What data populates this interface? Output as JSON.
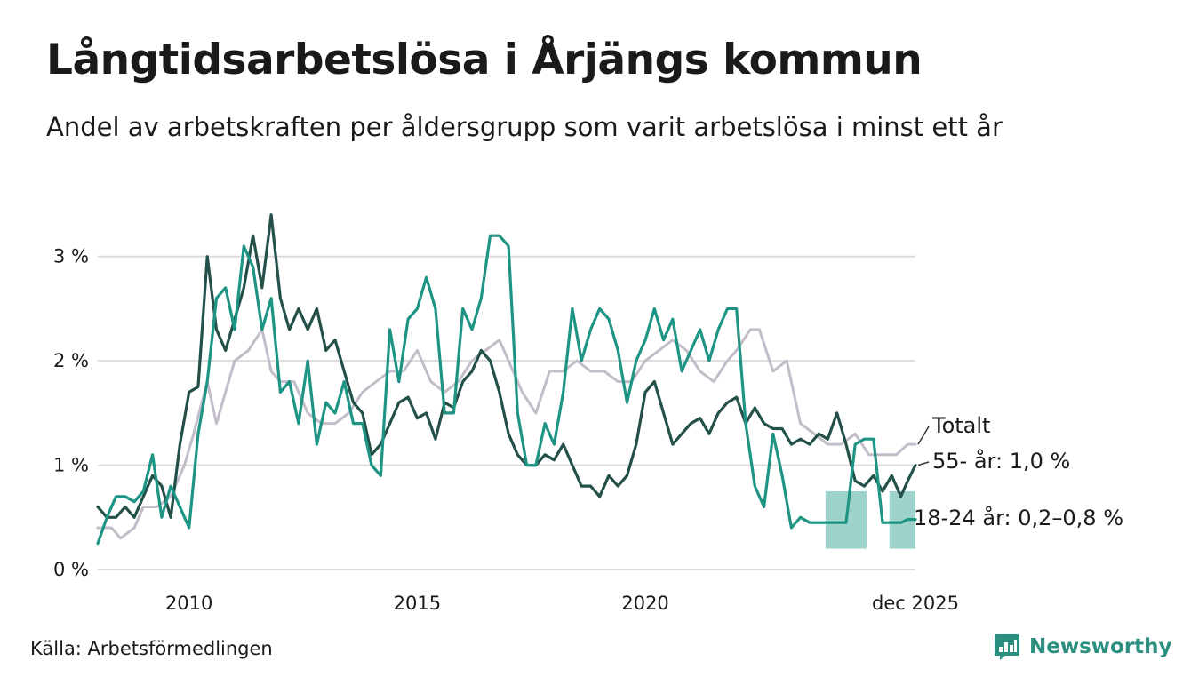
{
  "title": "Långtidsarbetslösa i Årjängs kommun",
  "subtitle": "Andel av arbetskraften per åldersgrupp som varit arbetslösa i minst ett år",
  "source": "Källa: Arbetsförmedlingen",
  "logo": {
    "name": "Newsworthy",
    "icon": "bar-chart-speech-bubble-icon"
  },
  "colors": {
    "total": "#c2bdc9",
    "senior": "#24504a",
    "youth": "#1e9484",
    "youth_band": "#9ed3cb",
    "grid": "#dcdcdc"
  },
  "chart_data": {
    "type": "line",
    "title": "Långtidsarbetslösa i Årjängs kommun",
    "ylabel": "",
    "xlabel": "",
    "ylim": [
      0,
      3.5
    ],
    "xlim": [
      2008.0,
      2025.92
    ],
    "yticks": [
      0,
      1,
      2,
      3
    ],
    "ytick_labels": [
      "0 %",
      "1 %",
      "2 %",
      "3 %"
    ],
    "xticks": [
      2010,
      2015,
      2020,
      2025.92
    ],
    "xtick_labels": [
      "2010",
      "2015",
      "2020",
      "dec 2025"
    ],
    "series": [
      {
        "name": "Totalt",
        "label": "Totalt",
        "key": "total",
        "x": [
          2008.0,
          2008.3,
          2008.5,
          2008.8,
          2009.0,
          2009.3,
          2009.6,
          2009.9,
          2010.1,
          2010.4,
          2010.6,
          2010.8,
          2011.0,
          2011.3,
          2011.6,
          2011.8,
          2012.0,
          2012.3,
          2012.6,
          2012.9,
          2013.2,
          2013.5,
          2013.8,
          2014.1,
          2014.4,
          2014.7,
          2015.0,
          2015.3,
          2015.6,
          2015.9,
          2016.2,
          2016.5,
          2016.8,
          2017.0,
          2017.3,
          2017.6,
          2017.9,
          2018.2,
          2018.5,
          2018.8,
          2019.1,
          2019.4,
          2019.7,
          2020.0,
          2020.3,
          2020.6,
          2020.9,
          2021.2,
          2021.5,
          2021.8,
          2022.0,
          2022.3,
          2022.5,
          2022.8,
          2023.1,
          2023.4,
          2023.7,
          2024.0,
          2024.3,
          2024.6,
          2024.9,
          2025.2,
          2025.5,
          2025.75,
          2025.92
        ],
        "values": [
          0.4,
          0.4,
          0.3,
          0.4,
          0.6,
          0.6,
          0.7,
          1.0,
          1.3,
          1.8,
          1.4,
          1.7,
          2.0,
          2.1,
          2.3,
          1.9,
          1.8,
          1.8,
          1.5,
          1.4,
          1.4,
          1.5,
          1.7,
          1.8,
          1.9,
          1.9,
          2.1,
          1.8,
          1.7,
          1.8,
          2.0,
          2.1,
          2.2,
          2.0,
          1.7,
          1.5,
          1.9,
          1.9,
          2.0,
          1.9,
          1.9,
          1.8,
          1.8,
          2.0,
          2.1,
          2.2,
          2.1,
          1.9,
          1.8,
          2.0,
          2.1,
          2.3,
          2.3,
          1.9,
          2.0,
          1.4,
          1.3,
          1.2,
          1.2,
          1.3,
          1.1,
          1.1,
          1.1,
          1.2,
          1.2
        ]
      },
      {
        "name": "55- år",
        "label": "55- år: 1,0 %",
        "key": "senior",
        "x": [
          2008.0,
          2008.2,
          2008.4,
          2008.6,
          2008.8,
          2009.0,
          2009.2,
          2009.4,
          2009.6,
          2009.8,
          2010.0,
          2010.2,
          2010.4,
          2010.6,
          2010.8,
          2011.0,
          2011.2,
          2011.4,
          2011.6,
          2011.8,
          2012.0,
          2012.2,
          2012.4,
          2012.6,
          2012.8,
          2013.0,
          2013.2,
          2013.4,
          2013.6,
          2013.8,
          2014.0,
          2014.2,
          2014.4,
          2014.6,
          2014.8,
          2015.0,
          2015.2,
          2015.4,
          2015.6,
          2015.8,
          2016.0,
          2016.2,
          2016.4,
          2016.6,
          2016.8,
          2017.0,
          2017.2,
          2017.4,
          2017.6,
          2017.8,
          2018.0,
          2018.2,
          2018.4,
          2018.6,
          2018.8,
          2019.0,
          2019.2,
          2019.4,
          2019.6,
          2019.8,
          2020.0,
          2020.2,
          2020.4,
          2020.6,
          2020.8,
          2021.0,
          2021.2,
          2021.4,
          2021.6,
          2021.8,
          2022.0,
          2022.2,
          2022.4,
          2022.6,
          2022.8,
          2023.0,
          2023.2,
          2023.4,
          2023.6,
          2023.8,
          2024.0,
          2024.2,
          2024.4,
          2024.6,
          2024.8,
          2025.0,
          2025.2,
          2025.4,
          2025.6,
          2025.75,
          2025.92
        ],
        "values": [
          0.6,
          0.5,
          0.5,
          0.6,
          0.5,
          0.7,
          0.9,
          0.8,
          0.5,
          1.2,
          1.7,
          1.75,
          3.0,
          2.3,
          2.1,
          2.4,
          2.7,
          3.2,
          2.7,
          3.4,
          2.6,
          2.3,
          2.5,
          2.3,
          2.5,
          2.1,
          2.2,
          1.9,
          1.6,
          1.5,
          1.1,
          1.2,
          1.4,
          1.6,
          1.65,
          1.45,
          1.5,
          1.25,
          1.6,
          1.55,
          1.8,
          1.9,
          2.1,
          2.0,
          1.7,
          1.3,
          1.1,
          1.0,
          1.0,
          1.1,
          1.05,
          1.2,
          1.0,
          0.8,
          0.8,
          0.7,
          0.9,
          0.8,
          0.9,
          1.2,
          1.7,
          1.8,
          1.5,
          1.2,
          1.3,
          1.4,
          1.45,
          1.3,
          1.5,
          1.6,
          1.65,
          1.4,
          1.55,
          1.4,
          1.35,
          1.35,
          1.2,
          1.25,
          1.2,
          1.3,
          1.25,
          1.5,
          1.2,
          0.85,
          0.8,
          0.9,
          0.75,
          0.9,
          0.7,
          0.85,
          1.0
        ]
      },
      {
        "name": "18-24 år",
        "label": "18-24 år: 0,2–0,8 %",
        "key": "youth",
        "x": [
          2008.0,
          2008.2,
          2008.4,
          2008.6,
          2008.8,
          2009.0,
          2009.2,
          2009.4,
          2009.6,
          2009.8,
          2010.0,
          2010.2,
          2010.4,
          2010.6,
          2010.8,
          2011.0,
          2011.2,
          2011.4,
          2011.6,
          2011.8,
          2012.0,
          2012.2,
          2012.4,
          2012.6,
          2012.8,
          2013.0,
          2013.2,
          2013.4,
          2013.6,
          2013.8,
          2014.0,
          2014.2,
          2014.4,
          2014.6,
          2014.8,
          2015.0,
          2015.2,
          2015.4,
          2015.6,
          2015.8,
          2016.0,
          2016.2,
          2016.4,
          2016.6,
          2016.8,
          2017.0,
          2017.2,
          2017.4,
          2017.6,
          2017.8,
          2018.0,
          2018.2,
          2018.4,
          2018.6,
          2018.8,
          2019.0,
          2019.2,
          2019.4,
          2019.6,
          2019.8,
          2020.0,
          2020.2,
          2020.4,
          2020.6,
          2020.8,
          2021.0,
          2021.2,
          2021.4,
          2021.6,
          2021.8,
          2022.0,
          2022.2,
          2022.4,
          2022.6,
          2022.8,
          2023.0,
          2023.2,
          2023.4,
          2023.6,
          2023.8,
          2024.0,
          2024.2,
          2024.4,
          2024.6,
          2024.8,
          2025.0,
          2025.2,
          2025.4,
          2025.6,
          2025.75,
          2025.92
        ],
        "values": [
          0.25,
          0.5,
          0.7,
          0.7,
          0.65,
          0.75,
          1.1,
          0.5,
          0.8,
          0.6,
          0.4,
          1.3,
          1.8,
          2.6,
          2.7,
          2.3,
          3.1,
          2.9,
          2.3,
          2.6,
          1.7,
          1.8,
          1.4,
          2.0,
          1.2,
          1.6,
          1.5,
          1.8,
          1.4,
          1.4,
          1.0,
          0.9,
          2.3,
          1.8,
          2.4,
          2.5,
          2.8,
          2.5,
          1.5,
          1.5,
          2.5,
          2.3,
          2.6,
          3.2,
          3.2,
          3.1,
          1.5,
          1.0,
          1.0,
          1.4,
          1.2,
          1.7,
          2.5,
          2.0,
          2.3,
          2.5,
          2.4,
          2.1,
          1.6,
          2.0,
          2.2,
          2.5,
          2.2,
          2.4,
          1.9,
          2.1,
          2.3,
          2.0,
          2.3,
          2.5,
          2.5,
          1.4,
          0.8,
          0.6,
          1.3,
          0.9,
          0.4,
          0.5,
          0.45,
          0.45,
          0.45,
          0.45,
          0.45,
          1.2,
          1.25,
          1.25,
          0.45,
          0.45,
          0.45,
          0.48,
          0.48
        ],
        "band": {
          "x_ranges": [
            [
              2023.95,
              2024.85
            ],
            [
              2025.35,
              2025.92
            ]
          ],
          "low": 0.2,
          "high": 0.75
        }
      }
    ]
  }
}
